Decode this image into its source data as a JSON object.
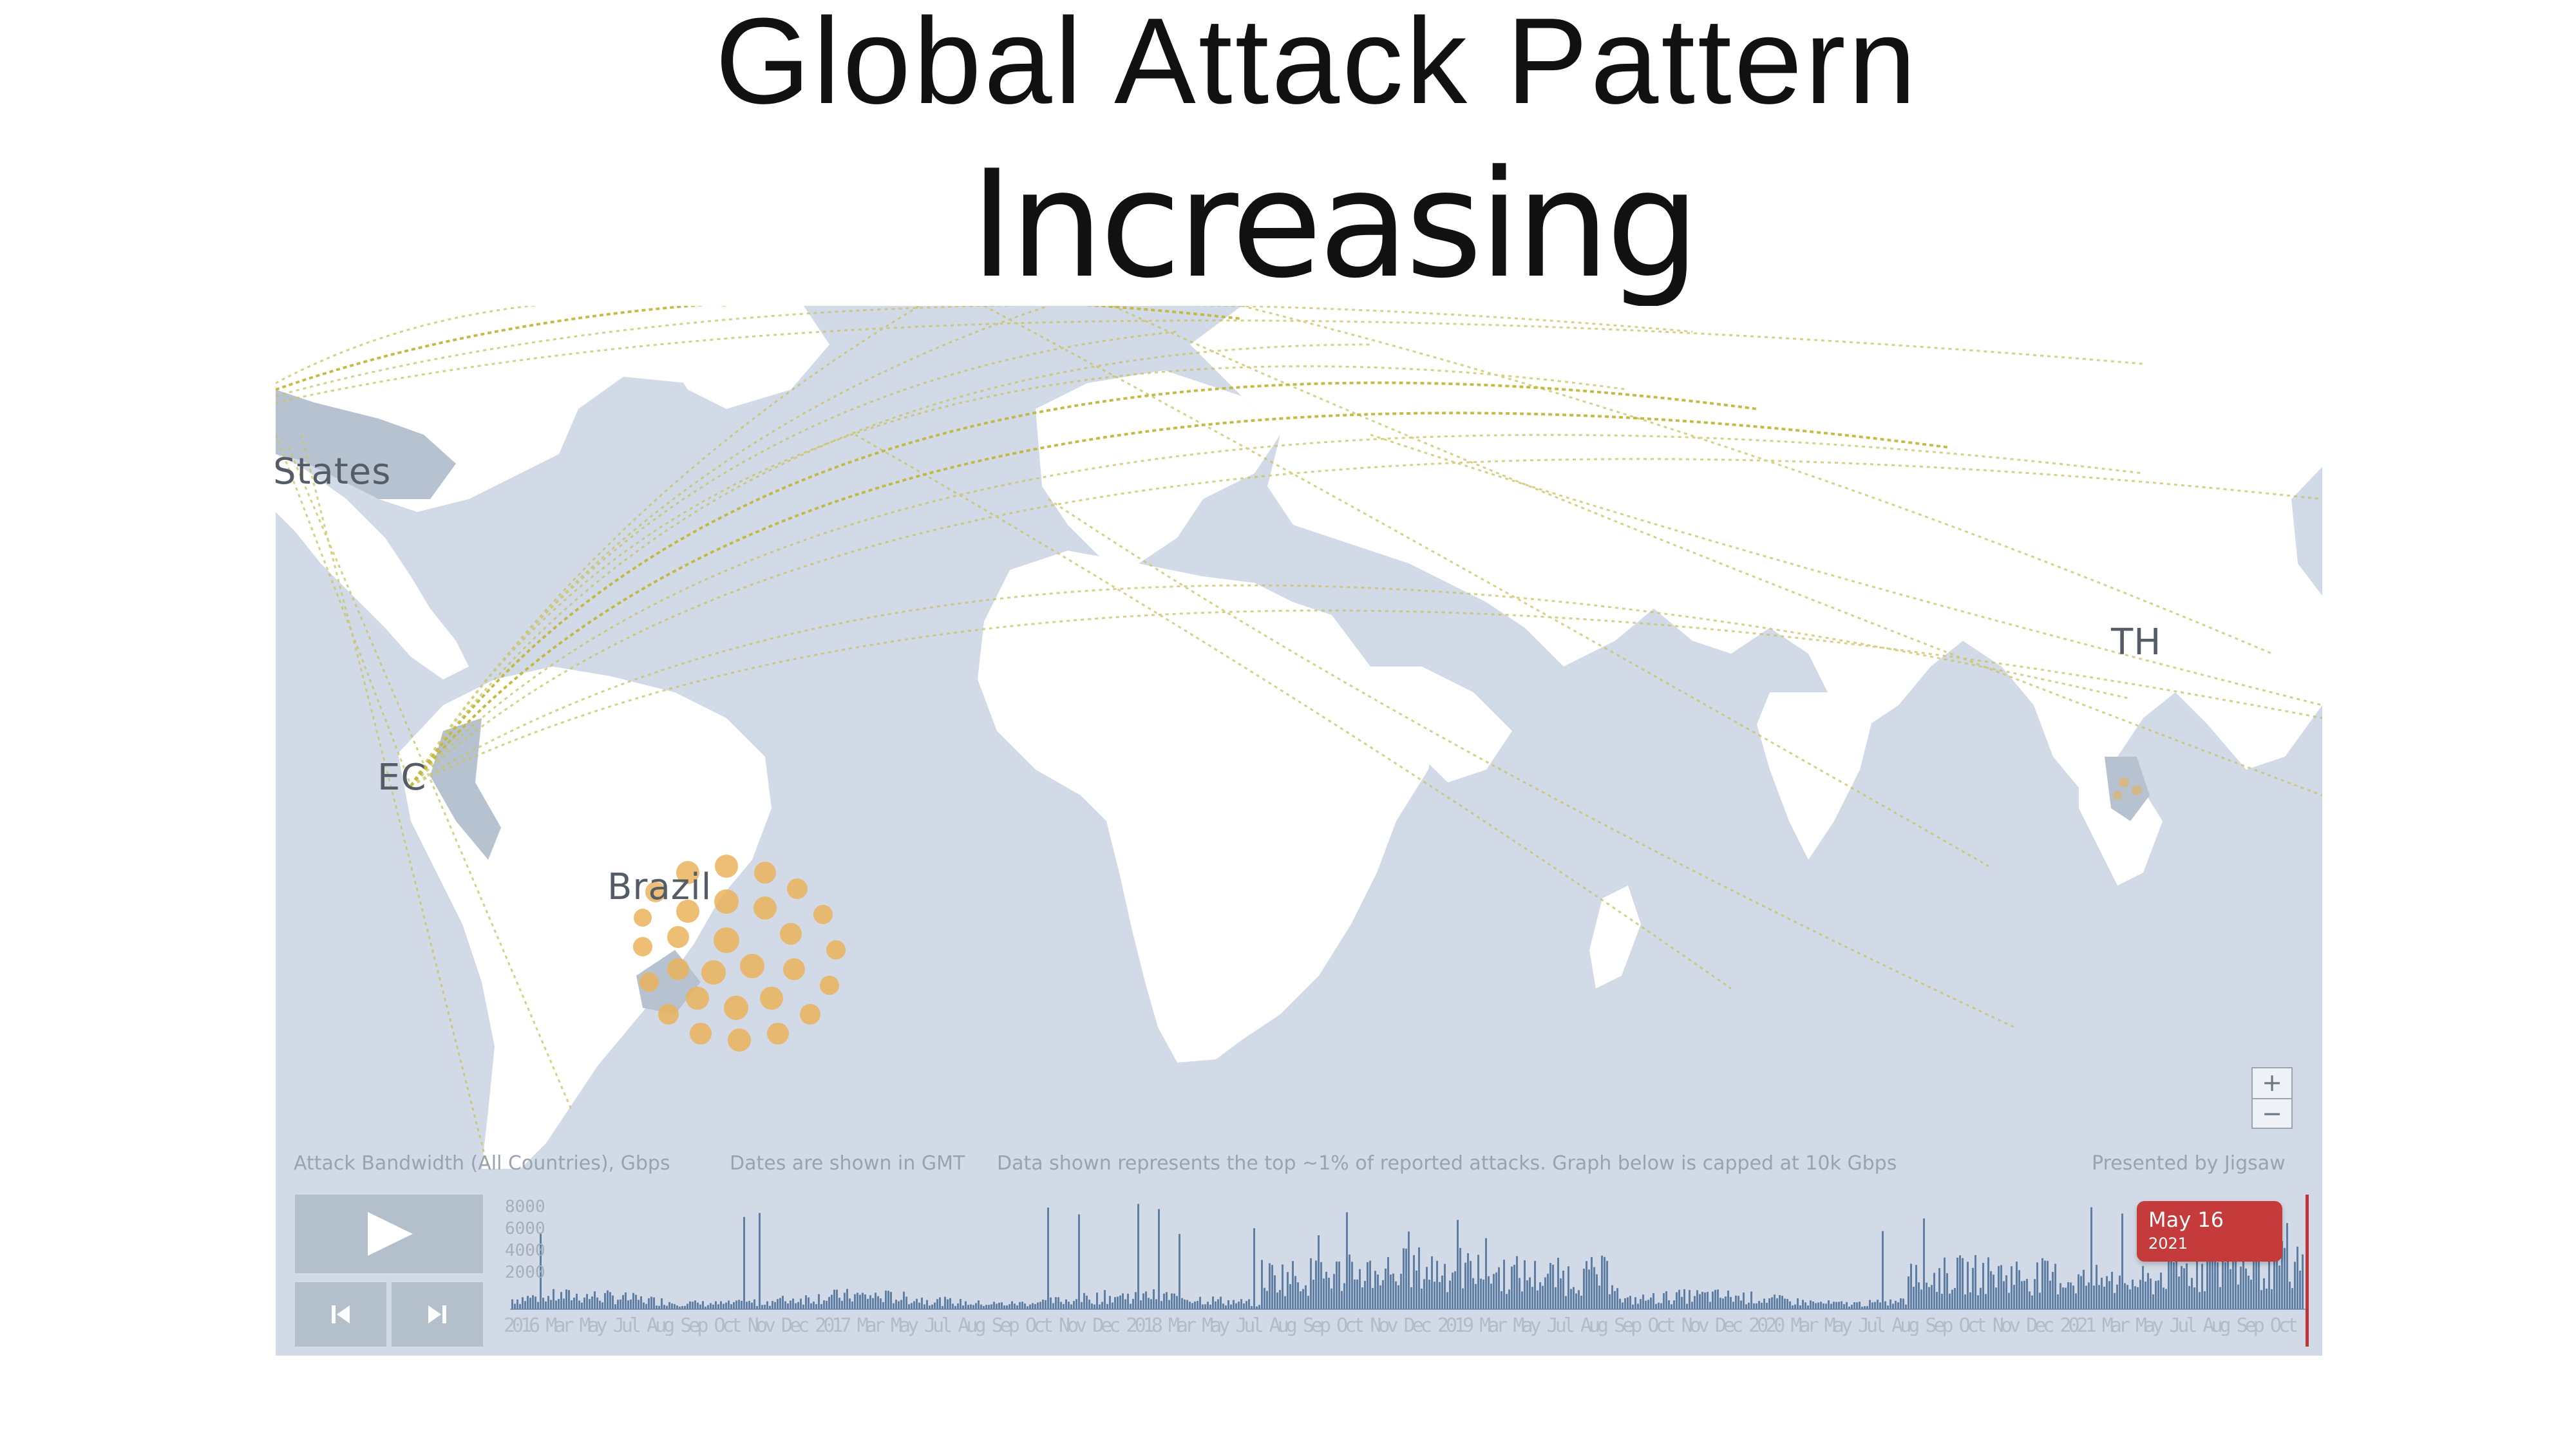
{
  "slide": {
    "title_line1": "Global Attack Pattern",
    "title_line2": "Increasing"
  },
  "map": {
    "labels": {
      "states": "States",
      "ec": "EC",
      "brazil": "Brazil",
      "th": "TH"
    },
    "colors": {
      "ocean": "#d1dae6",
      "land": "#ffffff",
      "highlighted_land": "#b7c2d1",
      "attack_arc": "#c9c260",
      "hotspot": "#eab35c"
    },
    "zoom": {
      "in_label": "+",
      "out_label": "−"
    }
  },
  "infobar": {
    "bandwidth": "Attack Bandwidth (All Countries), Gbps",
    "dates_note": "Dates are shown in GMT",
    "data_note": "Data shown represents the top ~1% of reported attacks. Graph below is capped at 10k Gbps",
    "credit": "Presented by Jigsaw"
  },
  "controls": {
    "play_icon": "play-icon",
    "prev_icon": "skip-back-icon",
    "next_icon": "skip-forward-icon"
  },
  "timeline": {
    "y_ticks": [
      "8000",
      "6000",
      "4000",
      "2000"
    ],
    "x_ticks_text": "2016 Mar May Jul Aug Sep Oct Nov Dec 2017 Mar May Jul Aug Sep Oct Nov Dec 2018 Mar May Jul Aug Sep Oct Nov Dec 2019 Mar May Jul Aug Sep Oct Nov Dec 2020 Mar May Jul Aug Sep Oct Nov Dec 2021 Mar May Jul Aug Sep Oct Nov Dec 2021 Mar May",
    "current_date": {
      "line1": "May 16",
      "line2": "2021"
    },
    "bar_color": "#5e7fa3",
    "marker_color": "#c23333"
  }
}
